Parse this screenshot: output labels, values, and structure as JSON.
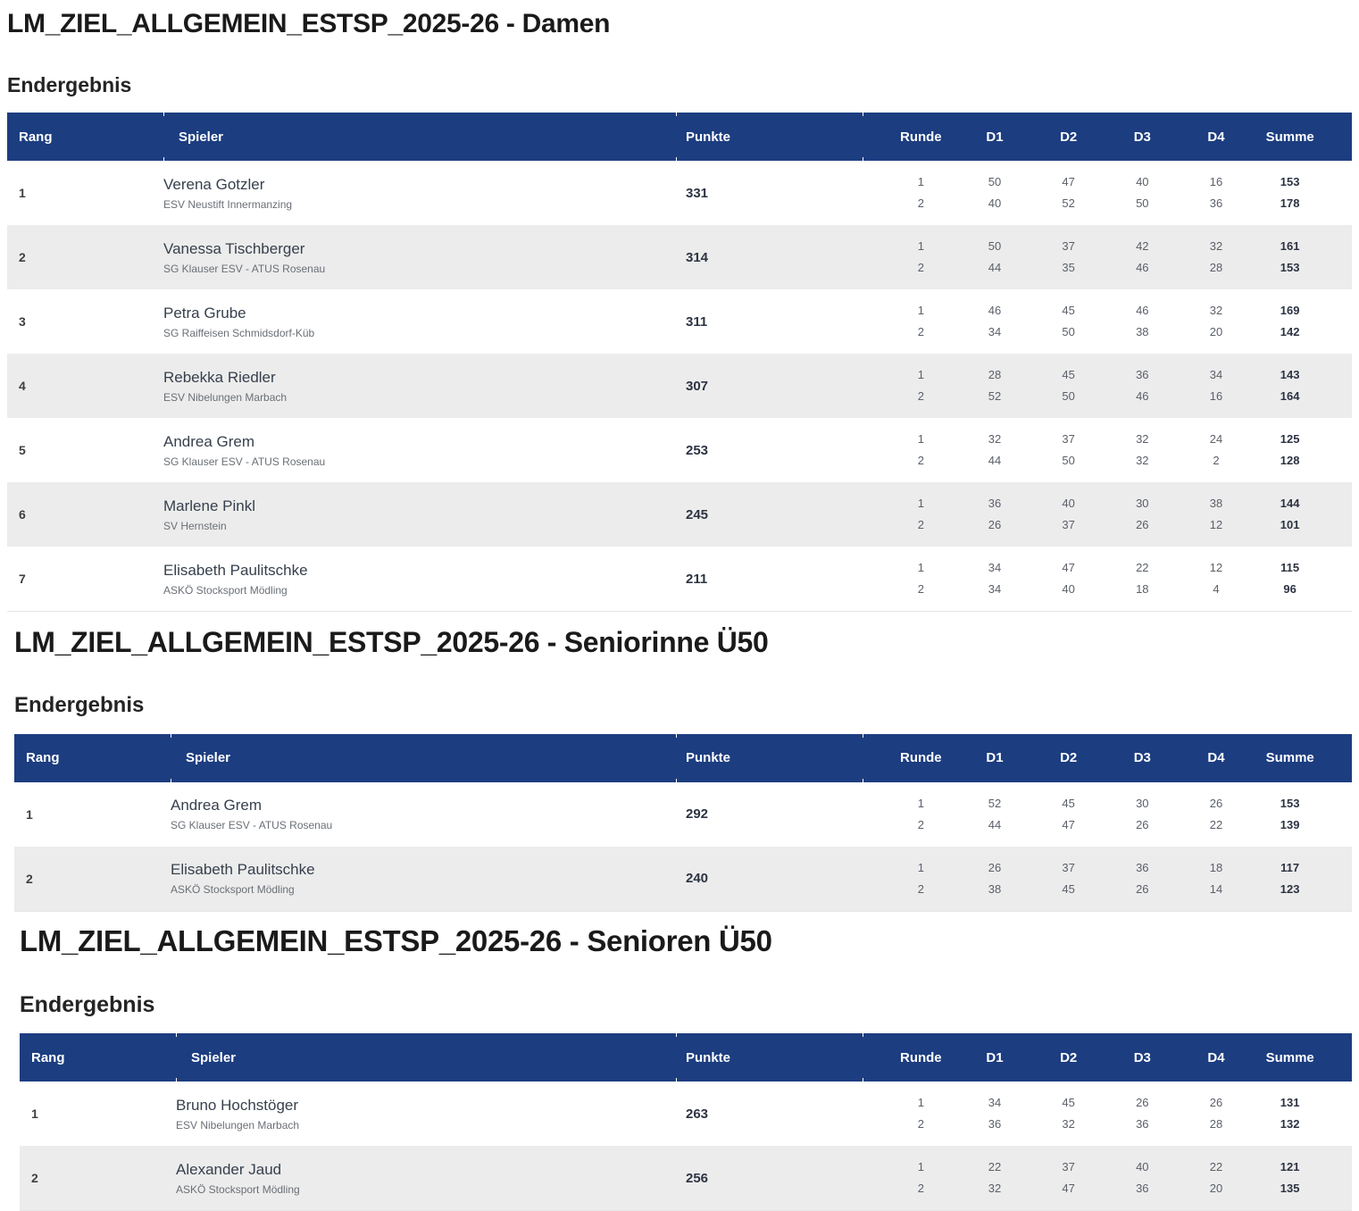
{
  "colors": {
    "header_bg": "#1c3d80",
    "row_alt": "#ececec",
    "header_text": "#ffffff"
  },
  "page": {
    "sections": [
      {
        "title": "LM_ZIEL_ALLGEMEIN_ESTSP_2025-26 - Damen",
        "subtitle": "Endergebnis",
        "table": {
          "columns": [
            "Rang",
            "Spieler",
            "Punkte",
            "Runde",
            "D1",
            "D2",
            "D3",
            "D4",
            "Summe"
          ],
          "rows": [
            {
              "rank": "1",
              "player": "Verena Gotzler",
              "club": "ESV Neustift Innermanzing",
              "points": "331",
              "rounds": [
                {
                  "runde": "1",
                  "d1": "50",
                  "d2": "47",
                  "d3": "40",
                  "d4": "16",
                  "summe": "153"
                },
                {
                  "runde": "2",
                  "d1": "40",
                  "d2": "52",
                  "d3": "50",
                  "d4": "36",
                  "summe": "178"
                }
              ]
            },
            {
              "rank": "2",
              "player": "Vanessa Tischberger",
              "club": "SG Klauser ESV - ATUS Rosenau",
              "points": "314",
              "rounds": [
                {
                  "runde": "1",
                  "d1": "50",
                  "d2": "37",
                  "d3": "42",
                  "d4": "32",
                  "summe": "161"
                },
                {
                  "runde": "2",
                  "d1": "44",
                  "d2": "35",
                  "d3": "46",
                  "d4": "28",
                  "summe": "153"
                }
              ]
            },
            {
              "rank": "3",
              "player": "Petra Grube",
              "club": "SG Raiffeisen Schmidsdorf-Küb",
              "points": "311",
              "rounds": [
                {
                  "runde": "1",
                  "d1": "46",
                  "d2": "45",
                  "d3": "46",
                  "d4": "32",
                  "summe": "169"
                },
                {
                  "runde": "2",
                  "d1": "34",
                  "d2": "50",
                  "d3": "38",
                  "d4": "20",
                  "summe": "142"
                }
              ]
            },
            {
              "rank": "4",
              "player": "Rebekka Riedler",
              "club": "ESV Nibelungen Marbach",
              "points": "307",
              "rounds": [
                {
                  "runde": "1",
                  "d1": "28",
                  "d2": "45",
                  "d3": "36",
                  "d4": "34",
                  "summe": "143"
                },
                {
                  "runde": "2",
                  "d1": "52",
                  "d2": "50",
                  "d3": "46",
                  "d4": "16",
                  "summe": "164"
                }
              ]
            },
            {
              "rank": "5",
              "player": "Andrea Grem",
              "club": "SG Klauser ESV - ATUS Rosenau",
              "points": "253",
              "rounds": [
                {
                  "runde": "1",
                  "d1": "32",
                  "d2": "37",
                  "d3": "32",
                  "d4": "24",
                  "summe": "125"
                },
                {
                  "runde": "2",
                  "d1": "44",
                  "d2": "50",
                  "d3": "32",
                  "d4": "2",
                  "summe": "128"
                }
              ]
            },
            {
              "rank": "6",
              "player": "Marlene Pinkl",
              "club": "SV Hernstein",
              "points": "245",
              "rounds": [
                {
                  "runde": "1",
                  "d1": "36",
                  "d2": "40",
                  "d3": "30",
                  "d4": "38",
                  "summe": "144"
                },
                {
                  "runde": "2",
                  "d1": "26",
                  "d2": "37",
                  "d3": "26",
                  "d4": "12",
                  "summe": "101"
                }
              ]
            },
            {
              "rank": "7",
              "player": "Elisabeth Paulitschke",
              "club": "ASKÖ Stocksport Mödling",
              "points": "211",
              "rounds": [
                {
                  "runde": "1",
                  "d1": "34",
                  "d2": "47",
                  "d3": "22",
                  "d4": "12",
                  "summe": "115"
                },
                {
                  "runde": "2",
                  "d1": "34",
                  "d2": "40",
                  "d3": "18",
                  "d4": "4",
                  "summe": "96"
                }
              ]
            }
          ]
        }
      },
      {
        "title": "LM_ZIEL_ALLGEMEIN_ESTSP_2025-26 - Seniorinne Ü50",
        "subtitle": "Endergebnis",
        "table": {
          "columns": [
            "Rang",
            "Spieler",
            "Punkte",
            "Runde",
            "D1",
            "D2",
            "D3",
            "D4",
            "Summe"
          ],
          "rows": [
            {
              "rank": "1",
              "player": "Andrea Grem",
              "club": "SG Klauser ESV - ATUS Rosenau",
              "points": "292",
              "rounds": [
                {
                  "runde": "1",
                  "d1": "52",
                  "d2": "45",
                  "d3": "30",
                  "d4": "26",
                  "summe": "153"
                },
                {
                  "runde": "2",
                  "d1": "44",
                  "d2": "47",
                  "d3": "26",
                  "d4": "22",
                  "summe": "139"
                }
              ]
            },
            {
              "rank": "2",
              "player": "Elisabeth Paulitschke",
              "club": "ASKÖ Stocksport Mödling",
              "points": "240",
              "rounds": [
                {
                  "runde": "1",
                  "d1": "26",
                  "d2": "37",
                  "d3": "36",
                  "d4": "18",
                  "summe": "117"
                },
                {
                  "runde": "2",
                  "d1": "38",
                  "d2": "45",
                  "d3": "26",
                  "d4": "14",
                  "summe": "123"
                }
              ]
            }
          ]
        }
      },
      {
        "title": "LM_ZIEL_ALLGEMEIN_ESTSP_2025-26 - Senioren Ü50",
        "subtitle": "Endergebnis",
        "table": {
          "columns": [
            "Rang",
            "Spieler",
            "Punkte",
            "Runde",
            "D1",
            "D2",
            "D3",
            "D4",
            "Summe"
          ],
          "rows": [
            {
              "rank": "1",
              "player": "Bruno Hochstöger",
              "club": "ESV Nibelungen Marbach",
              "points": "263",
              "rounds": [
                {
                  "runde": "1",
                  "d1": "34",
                  "d2": "45",
                  "d3": "26",
                  "d4": "26",
                  "summe": "131"
                },
                {
                  "runde": "2",
                  "d1": "36",
                  "d2": "32",
                  "d3": "36",
                  "d4": "28",
                  "summe": "132"
                }
              ]
            },
            {
              "rank": "2",
              "player": "Alexander Jaud",
              "club": "ASKÖ Stocksport Mödling",
              "points": "256",
              "rounds": [
                {
                  "runde": "1",
                  "d1": "22",
                  "d2": "37",
                  "d3": "40",
                  "d4": "22",
                  "summe": "121"
                },
                {
                  "runde": "2",
                  "d1": "32",
                  "d2": "47",
                  "d3": "36",
                  "d4": "20",
                  "summe": "135"
                }
              ]
            }
          ]
        }
      }
    ]
  }
}
